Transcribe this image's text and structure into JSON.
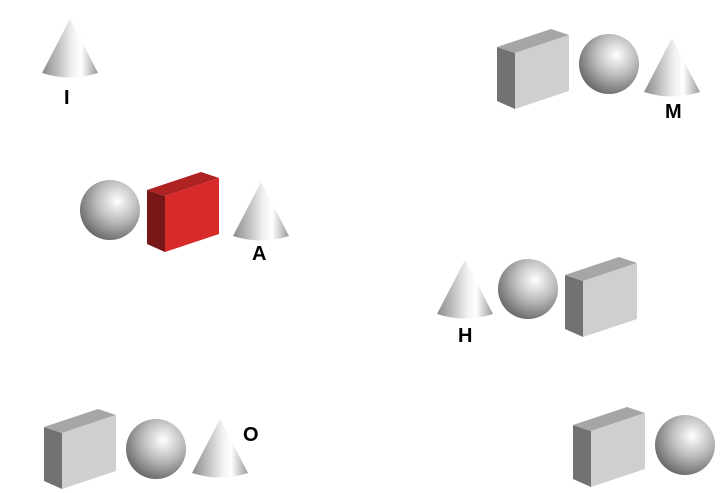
{
  "groups": [
    {
      "label": "I",
      "shapes": [
        {
          "type": "cone",
          "color": "#d9d9d9"
        }
      ]
    },
    {
      "label": "M",
      "shapes": [
        {
          "type": "cube",
          "color": "#cfcfcf"
        },
        {
          "type": "sphere",
          "color": "#d9d9d9"
        },
        {
          "type": "cone",
          "color": "#d9d9d9"
        }
      ]
    },
    {
      "label": "A",
      "shapes": [
        {
          "type": "sphere",
          "color": "#d9d9d9"
        },
        {
          "type": "cube",
          "color": "#d92a2a"
        },
        {
          "type": "cone",
          "color": "#d9d9d9"
        }
      ]
    },
    {
      "label": "H",
      "shapes": [
        {
          "type": "cone",
          "color": "#d9d9d9"
        },
        {
          "type": "sphere",
          "color": "#d9d9d9"
        },
        {
          "type": "cube",
          "color": "#cfcfcf"
        }
      ]
    },
    {
      "label": "O",
      "shapes": [
        {
          "type": "cube",
          "color": "#cfcfcf"
        },
        {
          "type": "sphere",
          "color": "#d9d9d9"
        },
        {
          "type": "cone",
          "color": "#d9d9d9"
        }
      ]
    },
    {
      "label": "",
      "shapes": [
        {
          "type": "cube",
          "color": "#cfcfcf"
        },
        {
          "type": "sphere",
          "color": "#d9d9d9"
        }
      ]
    }
  ]
}
